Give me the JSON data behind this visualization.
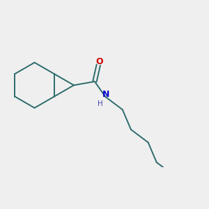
{
  "bg_color": "#efefef",
  "bond_color": "#2d6b6b",
  "o_color": "#cc0000",
  "n_color": "#0000cc",
  "h_color": "#4444aa",
  "line_width": 1.4,
  "figsize": [
    3.0,
    3.0
  ],
  "dpi": 100,
  "o_label": "O",
  "n_label": "N",
  "h_label": "H"
}
